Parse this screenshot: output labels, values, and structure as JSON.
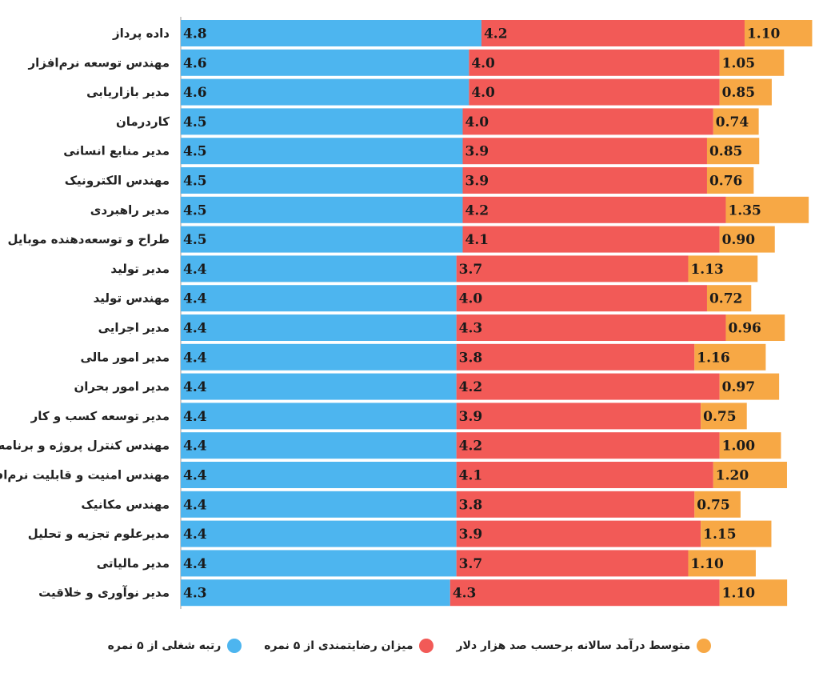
{
  "chart_data": {
    "type": "bar",
    "stacked": true,
    "orientation": "horizontal",
    "categories": [
      "داده پرداز",
      "مهندس توسعه نرم‌افزار",
      "مدیر بازاریابی",
      "کاردرمان",
      "مدیر منابع انسانی",
      "مهندس الکترونیک",
      "مدیر راهبردی",
      "طراح و توسعه‌دهنده موبایل",
      "مدیر تولید",
      "مهندس تولید",
      "مدیر اجرایی",
      "مدیر امور مالی",
      "مدیر امور بحران",
      "مدیر توسعه کسب و کار",
      "مهندس کنترل پروژه و برنامه‌ریزی",
      "مهندس امنیت و قابلیت نرم‌افزار",
      "مهندس مکانیک",
      "مدیرعلوم تجزیه و تحلیل",
      "مدیر مالیاتی",
      "مدیر نوآوری و خلاقیت"
    ],
    "series": [
      {
        "name": "رتبه شغلی از ۵ نمره",
        "color": "#4db5ef",
        "values": [
          "4.8",
          "4.6",
          "4.6",
          "4.5",
          "4.5",
          "4.5",
          "4.5",
          "4.5",
          "4.4",
          "4.4",
          "4.4",
          "4.4",
          "4.4",
          "4.4",
          "4.4",
          "4.4",
          "4.4",
          "4.4",
          "4.4",
          "4.3"
        ]
      },
      {
        "name": "میزان رضایتمندی از ۵ نمره",
        "color": "#f25a57",
        "values": [
          "4.2",
          "4.0",
          "4.0",
          "4.0",
          "3.9",
          "3.9",
          "4.2",
          "4.1",
          "3.7",
          "4.0",
          "4.3",
          "3.8",
          "4.2",
          "3.9",
          "4.2",
          "4.1",
          "3.8",
          "3.9",
          "3.7",
          "4.3"
        ]
      },
      {
        "name": "متوسط درآمد سالانه برحسب صد هزار دلار",
        "color": "#f7a845",
        "values": [
          "1.10",
          "1.05",
          "0.85",
          "0.74",
          "0.85",
          "0.76",
          "1.35",
          "0.90",
          "1.13",
          "0.72",
          "0.96",
          "1.16",
          "0.97",
          "0.75",
          "1.00",
          "1.20",
          "0.75",
          "1.15",
          "1.10",
          "1.10"
        ]
      }
    ],
    "legend_position": "bottom",
    "grid": false
  }
}
